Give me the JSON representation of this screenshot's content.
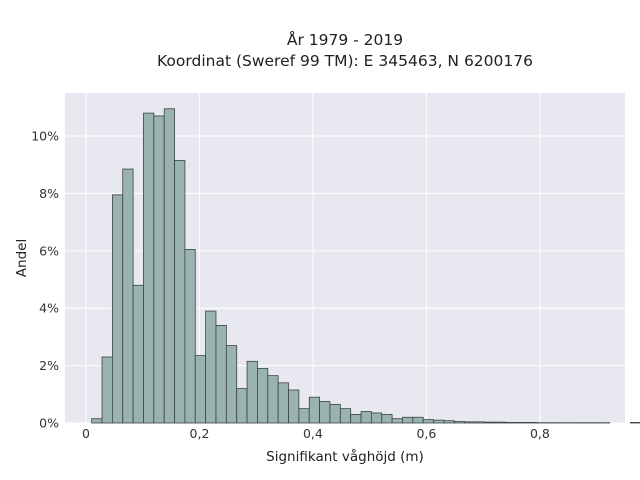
{
  "chart_data": {
    "type": "bar",
    "title_lines": [
      "År 1979 - 2019",
      "Koordinat (Sweref 99 TM): E 345463, N 6200176"
    ],
    "xlabel": "Signifikant våghöjd (m)",
    "ylabel": "Andel",
    "x_ticks": [
      {
        "value": 0,
        "label": "0"
      },
      {
        "value": 0.2,
        "label": "0,2"
      },
      {
        "value": 0.4,
        "label": "0,4"
      },
      {
        "value": 0.6,
        "label": "0,6"
      },
      {
        "value": 0.8,
        "label": "0,8"
      }
    ],
    "y_ticks": [
      {
        "value": 0,
        "label": "0%"
      },
      {
        "value": 2,
        "label": "2%"
      },
      {
        "value": 4,
        "label": "4%"
      },
      {
        "value": 6,
        "label": "6%"
      },
      {
        "value": 8,
        "label": "8%"
      },
      {
        "value": 10,
        "label": "10%"
      }
    ],
    "xlim": [
      -0.037,
      0.95
    ],
    "ylim": [
      0,
      11.5
    ],
    "bin_width": 0.01826,
    "bin_start": 0.01,
    "values": [
      0.15,
      2.3,
      7.95,
      8.85,
      4.8,
      10.8,
      10.7,
      10.95,
      9.15,
      6.05,
      2.35,
      3.9,
      3.4,
      2.7,
      1.2,
      2.15,
      1.9,
      1.65,
      1.4,
      1.15,
      0.5,
      0.9,
      0.75,
      0.65,
      0.5,
      0.3,
      0.4,
      0.35,
      0.3,
      0.15,
      0.2,
      0.2,
      0.12,
      0.1,
      0.08,
      0.05,
      0.04,
      0.04,
      0.03,
      0.03,
      0.02,
      0.02,
      0.02,
      0.01,
      0.01,
      0.01,
      0.01,
      0.01,
      0.01,
      0.01,
      0.0,
      0.0,
      0.02
    ],
    "grid": true
  },
  "colors": {
    "plot_background": "#e8e8f0",
    "bar_fill": "#9ab3b1",
    "bar_edge": "#3a4442",
    "grid": "#ffffff"
  }
}
